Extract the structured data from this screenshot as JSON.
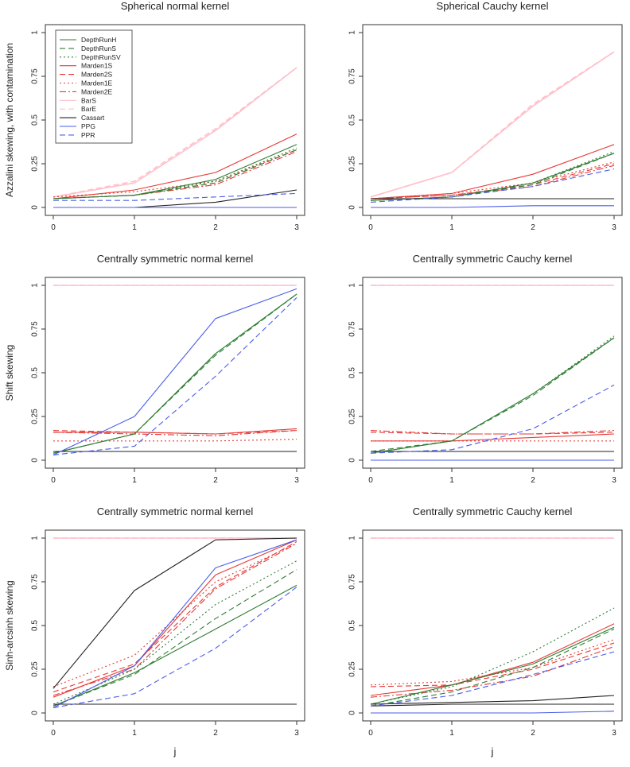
{
  "figure": {
    "row_ylabels": [
      "Azzalini skewing, with contamination",
      "Shift skewing",
      "Sinh-arcsinh skewing"
    ],
    "xlabel": "j",
    "legend_entries": [
      "DepthRunH",
      "DepthRunS",
      "DepthRunSV",
      "Marden1S",
      "Marden2S",
      "Marden1E",
      "Marden2E",
      "BarS",
      "BarE",
      "Cassart",
      "PPG",
      "PPR"
    ]
  },
  "colors": {
    "DepthRunH": "#2e7d32",
    "DepthRunS": "#2e7d32",
    "DepthRunSV": "#2e7d32",
    "Marden1S": "#e53935",
    "Marden2S": "#e53935",
    "Marden1E": "#e53935",
    "Marden2E": "#e53935",
    "BarS": "#ffc0cb",
    "BarE": "#ffc0cb",
    "Cassart": "#222222",
    "PPG": "#4a5de8",
    "PPR": "#4a5de8"
  },
  "dashes": {
    "DepthRunH": "solid",
    "DepthRunS": "dashed",
    "DepthRunSV": "dotted",
    "Marden1S": "solid",
    "Marden2S": "dashed",
    "Marden1E": "dotted",
    "Marden2E": "dashdot",
    "BarS": "solid",
    "BarE": "dashed",
    "Cassart": "solid",
    "PPG": "solid",
    "PPR": "dashed"
  },
  "chart_data": [
    {
      "type": "line",
      "title": "Spherical normal kernel",
      "xlabel": "",
      "ylabel": "Azzalini skewing, with contamination",
      "x": [
        0,
        1,
        2,
        3
      ],
      "xticks": [
        "0",
        "1",
        "2",
        "3"
      ],
      "yticks": [
        "0",
        "0.25",
        "0.5",
        "0.75",
        "1"
      ],
      "ylim": [
        0,
        1
      ],
      "legend": "top-left",
      "series": [
        {
          "name": "BarS",
          "values": [
            0.06,
            0.14,
            0.44,
            0.8
          ]
        },
        {
          "name": "BarE",
          "values": [
            0.06,
            0.15,
            0.45,
            0.8
          ]
        },
        {
          "name": "Marden1S",
          "values": [
            0.05,
            0.1,
            0.2,
            0.42
          ]
        },
        {
          "name": "Marden2S",
          "values": [
            0.05,
            0.07,
            0.14,
            0.33
          ]
        },
        {
          "name": "Marden1E",
          "values": [
            0.06,
            0.09,
            0.15,
            0.33
          ]
        },
        {
          "name": "Marden2E",
          "values": [
            0.05,
            0.07,
            0.13,
            0.32
          ]
        },
        {
          "name": "DepthRunH",
          "values": [
            0.05,
            0.07,
            0.16,
            0.36
          ]
        },
        {
          "name": "DepthRunS",
          "values": [
            0.05,
            0.07,
            0.14,
            0.33
          ]
        },
        {
          "name": "DepthRunSV",
          "values": [
            0.05,
            0.07,
            0.15,
            0.34
          ]
        },
        {
          "name": "Cassart",
          "values": [
            0.0,
            0.0,
            0.03,
            0.1
          ]
        },
        {
          "name": "PPG",
          "values": [
            0.0,
            0.0,
            0.0,
            0.0
          ]
        },
        {
          "name": "PPR",
          "values": [
            0.04,
            0.04,
            0.06,
            0.08
          ]
        }
      ]
    },
    {
      "type": "line",
      "title": "Spherical Cauchy kernel",
      "xlabel": "",
      "ylabel": "",
      "x": [
        0,
        1,
        2,
        3
      ],
      "xticks": [
        "0",
        "1",
        "2",
        "3"
      ],
      "yticks": [
        "0",
        "0.25",
        "0.5",
        "0.75",
        "1"
      ],
      "ylim": [
        0,
        1
      ],
      "series": [
        {
          "name": "BarS",
          "values": [
            0.06,
            0.2,
            0.58,
            0.89
          ]
        },
        {
          "name": "BarE",
          "values": [
            0.06,
            0.2,
            0.59,
            0.89
          ]
        },
        {
          "name": "Marden1S",
          "values": [
            0.05,
            0.08,
            0.19,
            0.36
          ]
        },
        {
          "name": "Marden2S",
          "values": [
            0.05,
            0.07,
            0.13,
            0.25
          ]
        },
        {
          "name": "Marden1E",
          "values": [
            0.05,
            0.08,
            0.14,
            0.26
          ]
        },
        {
          "name": "Marden2E",
          "values": [
            0.05,
            0.07,
            0.12,
            0.24
          ]
        },
        {
          "name": "DepthRunH",
          "values": [
            0.04,
            0.06,
            0.14,
            0.31
          ]
        },
        {
          "name": "DepthRunS",
          "values": [
            0.04,
            0.06,
            0.13,
            0.31
          ]
        },
        {
          "name": "DepthRunSV",
          "values": [
            0.04,
            0.06,
            0.14,
            0.32
          ]
        },
        {
          "name": "Cassart",
          "values": [
            0.05,
            0.05,
            0.05,
            0.05
          ]
        },
        {
          "name": "PPG",
          "values": [
            0.0,
            0.0,
            0.01,
            0.01
          ]
        },
        {
          "name": "PPR",
          "values": [
            0.03,
            0.06,
            0.12,
            0.22
          ]
        }
      ]
    },
    {
      "type": "line",
      "title": "Centrally symmetric normal kernel",
      "xlabel": "",
      "ylabel": "Shift skewing",
      "x": [
        0,
        1,
        2,
        3
      ],
      "xticks": [
        "0",
        "1",
        "2",
        "3"
      ],
      "yticks": [
        "0",
        "0.25",
        "0.5",
        "0.75",
        "1"
      ],
      "ylim": [
        0,
        1
      ],
      "series": [
        {
          "name": "BarS",
          "values": [
            1.0,
            1.0,
            1.0,
            1.0
          ]
        },
        {
          "name": "BarE",
          "values": [
            1.0,
            1.0,
            1.0,
            1.0
          ]
        },
        {
          "name": "Marden1S",
          "values": [
            0.16,
            0.16,
            0.15,
            0.18
          ]
        },
        {
          "name": "Marden2S",
          "values": [
            0.17,
            0.16,
            0.15,
            0.17
          ]
        },
        {
          "name": "Marden1E",
          "values": [
            0.11,
            0.11,
            0.11,
            0.12
          ]
        },
        {
          "name": "Marden2E",
          "values": [
            0.16,
            0.15,
            0.14,
            0.17
          ]
        },
        {
          "name": "DepthRunH",
          "values": [
            0.04,
            0.15,
            0.61,
            0.95
          ]
        },
        {
          "name": "DepthRunS",
          "values": [
            0.04,
            0.15,
            0.6,
            0.95
          ]
        },
        {
          "name": "DepthRunSV",
          "values": [
            0.04,
            0.15,
            0.61,
            0.95
          ]
        },
        {
          "name": "Cassart",
          "values": [
            0.05,
            0.05,
            0.05,
            0.05
          ]
        },
        {
          "name": "PPG",
          "values": [
            0.03,
            0.25,
            0.81,
            0.98
          ]
        },
        {
          "name": "PPR",
          "values": [
            0.03,
            0.08,
            0.48,
            0.93
          ]
        }
      ]
    },
    {
      "type": "line",
      "title": "Centrally symmetric Cauchy kernel",
      "xlabel": "",
      "ylabel": "",
      "x": [
        0,
        1,
        2,
        3
      ],
      "xticks": [
        "0",
        "1",
        "2",
        "3"
      ],
      "yticks": [
        "0",
        "0.25",
        "0.5",
        "0.75",
        "1"
      ],
      "ylim": [
        0,
        1
      ],
      "series": [
        {
          "name": "BarS",
          "values": [
            1.0,
            1.0,
            1.0,
            1.0
          ]
        },
        {
          "name": "BarE",
          "values": [
            1.0,
            1.0,
            1.0,
            1.0
          ]
        },
        {
          "name": "Marden1S",
          "values": [
            0.11,
            0.11,
            0.13,
            0.15
          ]
        },
        {
          "name": "Marden2S",
          "values": [
            0.16,
            0.15,
            0.15,
            0.16
          ]
        },
        {
          "name": "Marden1E",
          "values": [
            0.11,
            0.11,
            0.11,
            0.11
          ]
        },
        {
          "name": "Marden2E",
          "values": [
            0.17,
            0.15,
            0.15,
            0.17
          ]
        },
        {
          "name": "DepthRunH",
          "values": [
            0.04,
            0.11,
            0.38,
            0.7
          ]
        },
        {
          "name": "DepthRunS",
          "values": [
            0.05,
            0.11,
            0.37,
            0.7
          ]
        },
        {
          "name": "DepthRunSV",
          "values": [
            0.04,
            0.11,
            0.38,
            0.71
          ]
        },
        {
          "name": "Cassart",
          "values": [
            0.05,
            0.05,
            0.05,
            0.05
          ]
        },
        {
          "name": "PPG",
          "values": [
            0.0,
            0.0,
            0.0,
            0.0
          ]
        },
        {
          "name": "PPR",
          "values": [
            0.04,
            0.06,
            0.18,
            0.43
          ]
        }
      ]
    },
    {
      "type": "line",
      "title": "Centrally symmetric normal kernel",
      "xlabel": "j",
      "ylabel": "Sinh-arcsinh skewing",
      "x": [
        0,
        1,
        2,
        3
      ],
      "xticks": [
        "0",
        "1",
        "2",
        "3"
      ],
      "yticks": [
        "0",
        "0.25",
        "0.5",
        "0.75",
        "1"
      ],
      "ylim": [
        0,
        1
      ],
      "series": [
        {
          "name": "BarS",
          "values": [
            1.0,
            1.0,
            1.0,
            1.0
          ]
        },
        {
          "name": "BarE",
          "values": [
            1.0,
            1.0,
            1.0,
            1.0
          ]
        },
        {
          "name": "Marden1S",
          "values": [
            0.09,
            0.27,
            0.79,
            0.99
          ]
        },
        {
          "name": "Marden2S",
          "values": [
            0.12,
            0.28,
            0.72,
            0.98
          ]
        },
        {
          "name": "Marden1E",
          "values": [
            0.15,
            0.33,
            0.75,
            0.97
          ]
        },
        {
          "name": "Marden2E",
          "values": [
            0.1,
            0.25,
            0.71,
            0.97
          ]
        },
        {
          "name": "DepthRunH",
          "values": [
            0.04,
            0.23,
            0.48,
            0.73
          ]
        },
        {
          "name": "DepthRunS",
          "values": [
            0.04,
            0.22,
            0.54,
            0.82
          ]
        },
        {
          "name": "DepthRunSV",
          "values": [
            0.05,
            0.25,
            0.62,
            0.87
          ]
        },
        {
          "name": "Cassart",
          "values": [
            0.14,
            0.7,
            0.99,
            1.0
          ]
        },
        {
          "name": "Cassart",
          "values": [
            0.05,
            0.05,
            0.05,
            0.05
          ]
        },
        {
          "name": "PPG",
          "values": [
            0.03,
            0.27,
            0.83,
            0.99
          ]
        },
        {
          "name": "PPR",
          "values": [
            0.03,
            0.11,
            0.37,
            0.72
          ]
        }
      ]
    },
    {
      "type": "line",
      "title": "Centrally symmetric Cauchy kernel",
      "xlabel": "j",
      "ylabel": "",
      "x": [
        0,
        1,
        2,
        3
      ],
      "xticks": [
        "0",
        "1",
        "2",
        "3"
      ],
      "yticks": [
        "0",
        "0.25",
        "0.5",
        "0.75",
        "1"
      ],
      "ylim": [
        0,
        1
      ],
      "series": [
        {
          "name": "BarS",
          "values": [
            1.0,
            1.0,
            1.0,
            1.0
          ]
        },
        {
          "name": "BarE",
          "values": [
            1.0,
            1.0,
            1.0,
            1.0
          ]
        },
        {
          "name": "Marden1S",
          "values": [
            0.1,
            0.16,
            0.29,
            0.51
          ]
        },
        {
          "name": "Marden2S",
          "values": [
            0.15,
            0.16,
            0.25,
            0.4
          ]
        },
        {
          "name": "Marden1E",
          "values": [
            0.16,
            0.18,
            0.26,
            0.42
          ]
        },
        {
          "name": "Marden2E",
          "values": [
            0.09,
            0.13,
            0.21,
            0.38
          ]
        },
        {
          "name": "DepthRunH",
          "values": [
            0.05,
            0.16,
            0.28,
            0.49
          ]
        },
        {
          "name": "DepthRunS",
          "values": [
            0.04,
            0.12,
            0.26,
            0.48
          ]
        },
        {
          "name": "DepthRunSV",
          "values": [
            0.05,
            0.15,
            0.35,
            0.6
          ]
        },
        {
          "name": "Cassart",
          "values": [
            0.05,
            0.06,
            0.07,
            0.1
          ]
        },
        {
          "name": "Cassart",
          "values": [
            0.04,
            0.05,
            0.05,
            0.05
          ]
        },
        {
          "name": "PPG",
          "values": [
            0.0,
            0.0,
            0.0,
            0.01
          ]
        },
        {
          "name": "PPR",
          "values": [
            0.04,
            0.1,
            0.22,
            0.35
          ]
        }
      ]
    }
  ]
}
